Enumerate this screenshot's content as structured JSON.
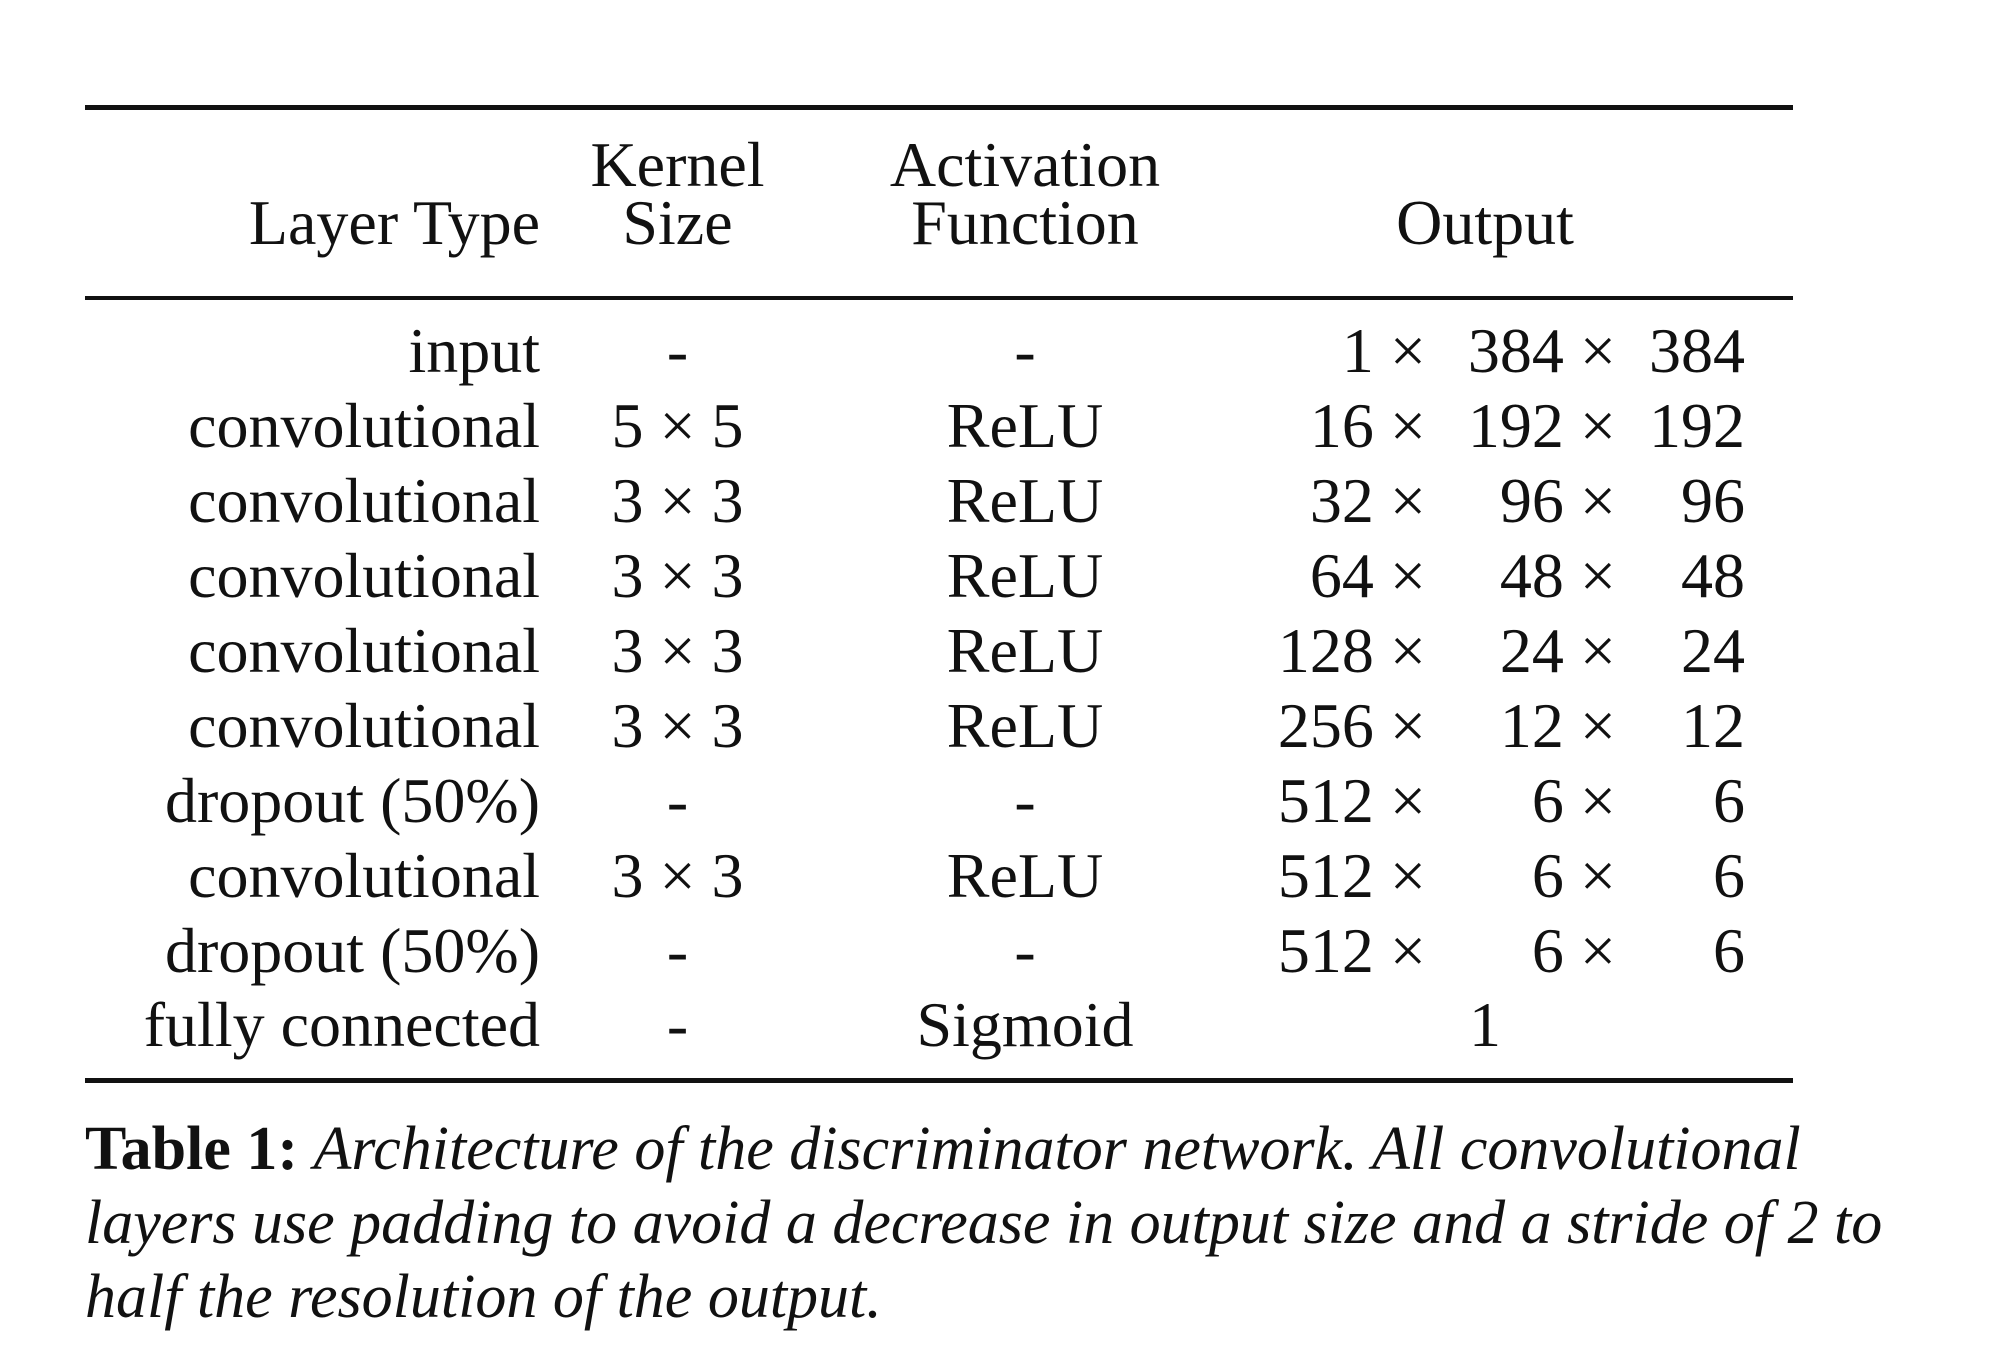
{
  "table": {
    "headers": {
      "layer_type": "Layer Type",
      "kernel_size_l1": "Kernel",
      "kernel_size_l2": "Size",
      "activation_l1": "Activation",
      "activation_l2": "Function",
      "output": "Output"
    },
    "rows": [
      {
        "layer": "input",
        "kernel": "-",
        "activation": "-",
        "out_a": "1 ×",
        "out_b": "384 ×",
        "out_c": "384"
      },
      {
        "layer": "convolutional",
        "kernel": "5 × 5",
        "activation": "ReLU",
        "out_a": "16 ×",
        "out_b": "192 ×",
        "out_c": "192"
      },
      {
        "layer": "convolutional",
        "kernel": "3 × 3",
        "activation": "ReLU",
        "out_a": "32 ×",
        "out_b": "96 ×",
        "out_c": "96"
      },
      {
        "layer": "convolutional",
        "kernel": "3 × 3",
        "activation": "ReLU",
        "out_a": "64 ×",
        "out_b": "48 ×",
        "out_c": "48"
      },
      {
        "layer": "convolutional",
        "kernel": "3 × 3",
        "activation": "ReLU",
        "out_a": "128 ×",
        "out_b": "24 ×",
        "out_c": "24"
      },
      {
        "layer": "convolutional",
        "kernel": "3 × 3",
        "activation": "ReLU",
        "out_a": "256 ×",
        "out_b": "12 ×",
        "out_c": "12"
      },
      {
        "layer": "dropout (50%)",
        "kernel": "-",
        "activation": "-",
        "out_a": "512 ×",
        "out_b": "6 ×",
        "out_c": "6"
      },
      {
        "layer": "convolutional",
        "kernel": "3 × 3",
        "activation": "ReLU",
        "out_a": "512 ×",
        "out_b": "6 ×",
        "out_c": "6"
      },
      {
        "layer": "dropout (50%)",
        "kernel": "-",
        "activation": "-",
        "out_a": "512 ×",
        "out_b": "6 ×",
        "out_c": "6"
      }
    ],
    "last_row": {
      "layer": "fully connected",
      "kernel": "-",
      "activation": "Sigmoid",
      "output": "1"
    }
  },
  "caption": {
    "label": "Table 1:",
    "text": "Architecture of the discriminator network. All convolutional layers use padding to avoid a decrease in output size and a stride of 2 to half the resolution of the output."
  }
}
